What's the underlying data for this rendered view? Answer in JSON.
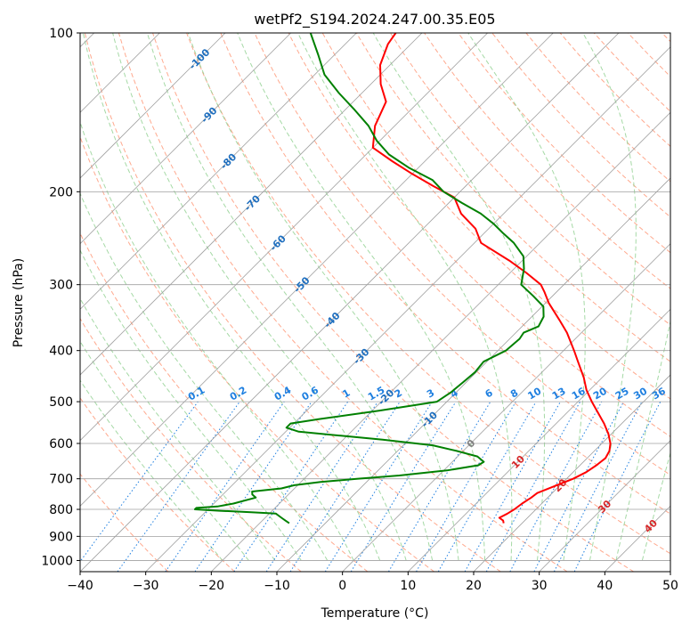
{
  "chart_data": {
    "type": "line",
    "chart_kind": "skew-T log-p diagram",
    "title": "wetPf2_S194.2024.247.00.35.E05",
    "xlabel": "Temperature (°C)",
    "ylabel": "Pressure (hPa)",
    "xlim": [
      -40,
      50
    ],
    "ylim": [
      1050,
      100
    ],
    "y_scale": "log",
    "grid": true,
    "xticks": [
      "−40",
      "−30",
      "−20",
      "−10",
      "0",
      "10",
      "20",
      "30",
      "40",
      "50"
    ],
    "yticks": [
      "100",
      "200",
      "300",
      "400",
      "500",
      "600",
      "700",
      "800",
      "900",
      "1000"
    ],
    "colors": {
      "temperature": "#ff0000",
      "dewpoint": "#008000",
      "isotherms": "#a0a0a0",
      "dry_adiabats": "#ff9a7a",
      "moist_adiabats": "#8fcf8f",
      "mixing_ratio": "#1e7fe0",
      "label_blue": "#1f6fbf",
      "label_red": "#d62728"
    },
    "series": [
      {
        "name": "",
        "color": "#ff0000",
        "points": [
          [
            850,
            17.2
          ],
          [
            840,
            16.7
          ],
          [
            830,
            15.7
          ],
          [
            815,
            16.3
          ],
          [
            800,
            16.7
          ],
          [
            780,
            17.0
          ],
          [
            760,
            17.5
          ],
          [
            745,
            17.7
          ],
          [
            720,
            19.5
          ],
          [
            700,
            21.0
          ],
          [
            680,
            22.0
          ],
          [
            660,
            22.5
          ],
          [
            640,
            22.8
          ],
          [
            620,
            22.3
          ],
          [
            600,
            21.3
          ],
          [
            575,
            19.5
          ],
          [
            550,
            17.3
          ],
          [
            500,
            12.1
          ],
          [
            475,
            9.5
          ],
          [
            450,
            7.2
          ],
          [
            420,
            3.9
          ],
          [
            400,
            1.6
          ],
          [
            370,
            -2.2
          ],
          [
            350,
            -5.3
          ],
          [
            325,
            -9.5
          ],
          [
            310,
            -11.8
          ],
          [
            300,
            -13.5
          ],
          [
            285,
            -17.5
          ],
          [
            270,
            -22.0
          ],
          [
            250,
            -29.0
          ],
          [
            235,
            -32.0
          ],
          [
            220,
            -36.5
          ],
          [
            205,
            -40.0
          ],
          [
            195,
            -45.0
          ],
          [
            185,
            -50.0
          ],
          [
            175,
            -55.0
          ],
          [
            165,
            -60.0
          ],
          [
            150,
            -63.0
          ],
          [
            135,
            -65.0
          ],
          [
            125,
            -68.5
          ],
          [
            115,
            -71.5
          ],
          [
            105,
            -73.5
          ],
          [
            100,
            -74.0
          ]
        ]
      },
      {
        "name": "",
        "color": "#008000",
        "points": [
          [
            850,
            -15.5
          ],
          [
            840,
            -16.5
          ],
          [
            830,
            -17.5
          ],
          [
            815,
            -19.0
          ],
          [
            810,
            -23.0
          ],
          [
            805,
            -28.0
          ],
          [
            800,
            -32.0
          ],
          [
            795,
            -32.0
          ],
          [
            790,
            -29.0
          ],
          [
            780,
            -27.0
          ],
          [
            760,
            -24.5
          ],
          [
            750,
            -25.5
          ],
          [
            740,
            -26.0
          ],
          [
            730,
            -22.0
          ],
          [
            720,
            -20.5
          ],
          [
            710,
            -17.0
          ],
          [
            700,
            -12.0
          ],
          [
            690,
            -6.0
          ],
          [
            675,
            0.5
          ],
          [
            660,
            4.5
          ],
          [
            650,
            4.8
          ],
          [
            635,
            3.0
          ],
          [
            620,
            -1.0
          ],
          [
            605,
            -5.5
          ],
          [
            590,
            -14.0
          ],
          [
            580,
            -21.0
          ],
          [
            570,
            -28.0
          ],
          [
            560,
            -30.5
          ],
          [
            550,
            -30.5
          ],
          [
            540,
            -27.0
          ],
          [
            520,
            -19.0
          ],
          [
            500,
            -11.5
          ],
          [
            480,
            -10.8
          ],
          [
            460,
            -10.5
          ],
          [
            440,
            -10.2
          ],
          [
            420,
            -10.5
          ],
          [
            400,
            -8.8
          ],
          [
            380,
            -8.5
          ],
          [
            370,
            -8.8
          ],
          [
            360,
            -7.5
          ],
          [
            345,
            -8.2
          ],
          [
            330,
            -9.8
          ],
          [
            315,
            -13.0
          ],
          [
            300,
            -16.5
          ],
          [
            280,
            -18.5
          ],
          [
            265,
            -20.5
          ],
          [
            250,
            -24.0
          ],
          [
            240,
            -27.0
          ],
          [
            230,
            -30.0
          ],
          [
            220,
            -33.5
          ],
          [
            210,
            -38.0
          ],
          [
            200,
            -42.5
          ],
          [
            190,
            -46.0
          ],
          [
            180,
            -51.5
          ],
          [
            170,
            -56.5
          ],
          [
            160,
            -60.5
          ],
          [
            150,
            -64.0
          ],
          [
            140,
            -68.5
          ],
          [
            130,
            -73.5
          ],
          [
            120,
            -78.5
          ],
          [
            110,
            -82.5
          ],
          [
            100,
            -87.0
          ]
        ]
      }
    ],
    "isotherm_labels": [
      "-100",
      "-90",
      "-80",
      "-70",
      "-60",
      "-50",
      "-40",
      "-30",
      "-20",
      "-10",
      "0",
      "10",
      "20",
      "30",
      "40"
    ],
    "mixing_ratio_labels": [
      "0.1",
      "0.2",
      "0.4",
      "0.6",
      "1",
      "1.5",
      "2",
      "3",
      "4",
      "6",
      "8",
      "10",
      "13",
      "16",
      "20",
      "25",
      "30",
      "36"
    ]
  }
}
